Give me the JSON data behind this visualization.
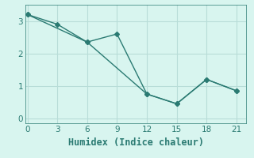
{
  "line1_x": [
    0,
    3,
    6,
    12,
    15,
    18,
    21
  ],
  "line1_y": [
    3.2,
    2.9,
    2.35,
    0.75,
    0.45,
    1.2,
    0.85
  ],
  "line2_x": [
    0,
    6,
    9,
    12,
    15,
    18,
    21
  ],
  "line2_y": [
    3.2,
    2.35,
    2.6,
    0.75,
    0.45,
    1.2,
    0.85
  ],
  "line_color": "#2a7a72",
  "bg_color": "#d8f5ef",
  "grid_color": "#b8ddd8",
  "xlabel": "Humidex (Indice chaleur)",
  "xlabel_fontsize": 8.5,
  "xticks": [
    0,
    3,
    6,
    9,
    12,
    15,
    18,
    21
  ],
  "yticks": [
    0,
    1,
    2,
    3
  ],
  "xlim": [
    -0.2,
    22
  ],
  "ylim": [
    -0.15,
    3.5
  ],
  "marker": "D",
  "marker_size": 3.0,
  "linewidth": 1.0
}
